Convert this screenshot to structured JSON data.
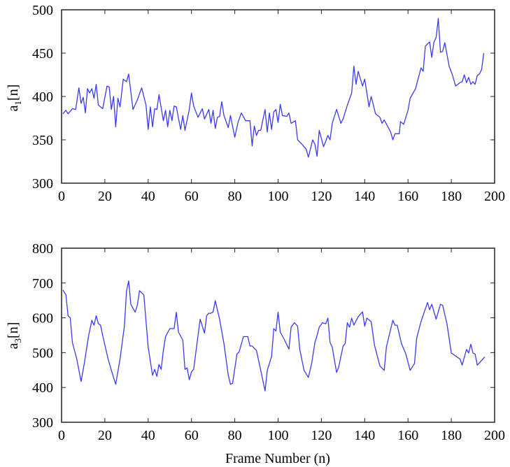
{
  "chart_data": [
    {
      "type": "line",
      "ylabel": "a1[n]",
      "ylabel_base": "a",
      "ylabel_sub": "1",
      "ylabel_rest": "[n]",
      "xlabel": "",
      "xlim": [
        0,
        200
      ],
      "ylim": [
        300,
        500
      ],
      "xticks": [
        0,
        20,
        40,
        60,
        80,
        100,
        120,
        140,
        160,
        180,
        200
      ],
      "yticks": [
        300,
        350,
        400,
        450,
        500
      ],
      "grid": false,
      "line_color": "#3a3af0",
      "x": [
        0.6,
        2,
        3,
        5,
        6.5,
        8,
        9,
        10,
        11,
        12,
        13,
        14,
        15,
        16,
        17,
        19,
        21,
        22,
        23,
        24,
        25,
        26,
        27,
        28.5,
        30,
        31,
        33,
        35,
        37,
        39,
        40,
        41,
        42,
        43,
        44,
        45,
        47,
        48,
        49,
        50,
        51,
        52,
        53,
        55,
        56,
        57,
        59,
        60,
        61,
        63,
        65,
        66,
        68,
        69,
        70,
        71,
        72,
        73,
        74,
        75,
        77,
        78,
        80,
        81.5,
        83,
        85,
        87,
        88,
        89,
        90,
        91,
        92,
        94,
        95,
        96,
        97,
        98,
        99,
        100,
        101,
        102,
        104,
        105,
        106,
        108,
        109,
        111,
        113,
        114,
        116,
        117,
        118,
        119,
        121,
        123,
        124,
        125,
        127,
        129,
        130,
        132,
        134,
        135,
        136,
        137,
        139,
        140,
        142,
        143,
        145,
        147,
        148,
        149,
        152,
        153,
        154,
        156,
        156.5,
        158,
        160,
        161,
        163.5,
        166,
        167,
        168,
        170,
        171,
        172,
        173,
        174,
        175,
        176,
        177,
        179,
        180.5,
        182,
        184,
        185,
        186,
        187,
        188,
        189,
        190,
        191,
        192,
        193,
        194,
        195
      ],
      "y": [
        380,
        384,
        380,
        386,
        385,
        410,
        392,
        399,
        381,
        409,
        404,
        409,
        398,
        414,
        390,
        386,
        412,
        411,
        385,
        400,
        365,
        398,
        388,
        420,
        417,
        426,
        385,
        396,
        410,
        390,
        362,
        388,
        365,
        386,
        385,
        402,
        372,
        384,
        365,
        384,
        372,
        389,
        388,
        362,
        378,
        361,
        385,
        404,
        389,
        376,
        386,
        374,
        385,
        369,
        384,
        363,
        376,
        377,
        394,
        378,
        364,
        378,
        353,
        370,
        381,
        372,
        372,
        343,
        366,
        355,
        361,
        361,
        385,
        359,
        381,
        362,
        382,
        385,
        370,
        391,
        378,
        377,
        381,
        369,
        372,
        350,
        345,
        339,
        330,
        350,
        345,
        331,
        361,
        342,
        355,
        350,
        369,
        385,
        369,
        374,
        390,
        404,
        435,
        414,
        429,
        412,
        420,
        388,
        400,
        380,
        376,
        369,
        373,
        359,
        350,
        357,
        357,
        371,
        368,
        384,
        398,
        409,
        433,
        429,
        458,
        463,
        445,
        463,
        468,
        490,
        451,
        452,
        462,
        435,
        425,
        412,
        416,
        417,
        425,
        416,
        422,
        414,
        417,
        414,
        424,
        426,
        431,
        450
      ]
    },
    {
      "type": "line",
      "ylabel": "a3[n]",
      "ylabel_base": "a",
      "ylabel_sub": "3",
      "ylabel_rest": "[n]",
      "xlabel": "Frame Number (n)",
      "xlim": [
        0,
        200
      ],
      "ylim": [
        300,
        800
      ],
      "xticks": [
        0,
        20,
        40,
        60,
        80,
        100,
        120,
        140,
        160,
        180,
        200
      ],
      "yticks": [
        300,
        400,
        500,
        600,
        700,
        800
      ],
      "grid": false,
      "line_color": "#3a3af0",
      "x": [
        0.6,
        2,
        3,
        4,
        5,
        7,
        9,
        10.5,
        12.5,
        14,
        15,
        16,
        17,
        18,
        19,
        21.5,
        23,
        25,
        27,
        29,
        30,
        31,
        32,
        34,
        35,
        36,
        38,
        40,
        42,
        43,
        44,
        45,
        46,
        47,
        48,
        50,
        52,
        53,
        54,
        56,
        57,
        58,
        59,
        60,
        61,
        64,
        66,
        67,
        68,
        69,
        70,
        71,
        73,
        75,
        77,
        78,
        79,
        81,
        82,
        84,
        86,
        87,
        88,
        90,
        92,
        94,
        95,
        97,
        98,
        99,
        100,
        101,
        103,
        105,
        106,
        107.5,
        109,
        110,
        112,
        114,
        115.5,
        117,
        118,
        119,
        120.5,
        122,
        123,
        124,
        125,
        127,
        128,
        130,
        131,
        132,
        133,
        134,
        135,
        137,
        139,
        140,
        141,
        143,
        144.5,
        147,
        149,
        150,
        153,
        154,
        155,
        157,
        159,
        161,
        163,
        164,
        166,
        169,
        170,
        171,
        173,
        175,
        176,
        178,
        180,
        183,
        184,
        185,
        187,
        188,
        189,
        190,
        191,
        192,
        195.5
      ],
      "y": [
        680,
        666,
        606,
        600,
        529,
        482,
        417,
        469,
        549,
        593,
        579,
        606,
        583,
        579,
        549,
        482,
        449,
        409,
        482,
        576,
        676,
        706,
        639,
        616,
        636,
        678,
        666,
        516,
        435,
        452,
        432,
        466,
        452,
        506,
        546,
        569,
        569,
        616,
        559,
        536,
        452,
        456,
        422,
        445,
        452,
        596,
        556,
        606,
        613,
        613,
        617,
        649,
        596,
        526,
        435,
        409,
        412,
        496,
        502,
        546,
        546,
        519,
        519,
        506,
        449,
        390,
        449,
        489,
        569,
        562,
        616,
        559,
        536,
        510,
        573,
        586,
        576,
        509,
        449,
        429,
        469,
        529,
        549,
        573,
        586,
        583,
        599,
        529,
        516,
        443,
        459,
        519,
        526,
        586,
        573,
        599,
        579,
        603,
        617,
        576,
        599,
        589,
        522,
        462,
        449,
        516,
        593,
        579,
        579,
        526,
        496,
        449,
        469,
        542,
        589,
        644,
        623,
        639,
        596,
        639,
        636,
        583,
        499,
        486,
        482,
        464,
        509,
        499,
        524,
        499,
        496,
        464,
        488
      ]
    }
  ]
}
